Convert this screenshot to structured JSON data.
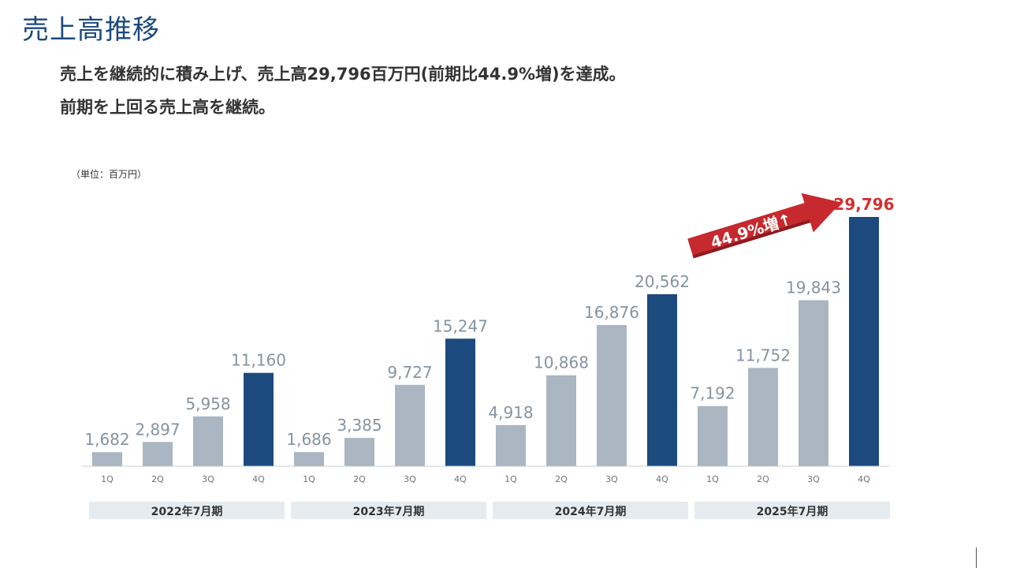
{
  "title": "売上高推移",
  "lead": {
    "line1": "売上を継続的に積み上げ、売上高29,796百万円(前期比44.9%増)を達成。",
    "line2": "前期を上回る売上高を継続。"
  },
  "unit_label": "（単位：百万円）",
  "colors": {
    "title": "#1c4a7e",
    "bar_default": "#aab6c1",
    "bar_q4": "#1c4a7e",
    "value_label": "#8693a0",
    "highlight": "#d32f2f",
    "year_box": "#e6ebef",
    "arrow": "#c6292e"
  },
  "highlight": {
    "label": "44.9%増↑"
  },
  "chart_data": {
    "type": "bar",
    "unit": "百万円",
    "ylim": [
      0,
      29796
    ],
    "groups": [
      {
        "label": "2022年7月期",
        "quarters": [
          "1Q",
          "2Q",
          "3Q",
          "4Q"
        ],
        "values": [
          1682,
          2897,
          5958,
          11160
        ]
      },
      {
        "label": "2023年7月期",
        "quarters": [
          "1Q",
          "2Q",
          "3Q",
          "4Q"
        ],
        "values": [
          1686,
          3385,
          9727,
          15247
        ]
      },
      {
        "label": "2024年7月期",
        "quarters": [
          "1Q",
          "2Q",
          "3Q",
          "4Q"
        ],
        "values": [
          4918,
          10868,
          16876,
          20562
        ]
      },
      {
        "label": "2025年7月期",
        "quarters": [
          "1Q",
          "2Q",
          "3Q",
          "4Q"
        ],
        "values": [
          7192,
          11752,
          19843,
          29796
        ]
      }
    ]
  }
}
